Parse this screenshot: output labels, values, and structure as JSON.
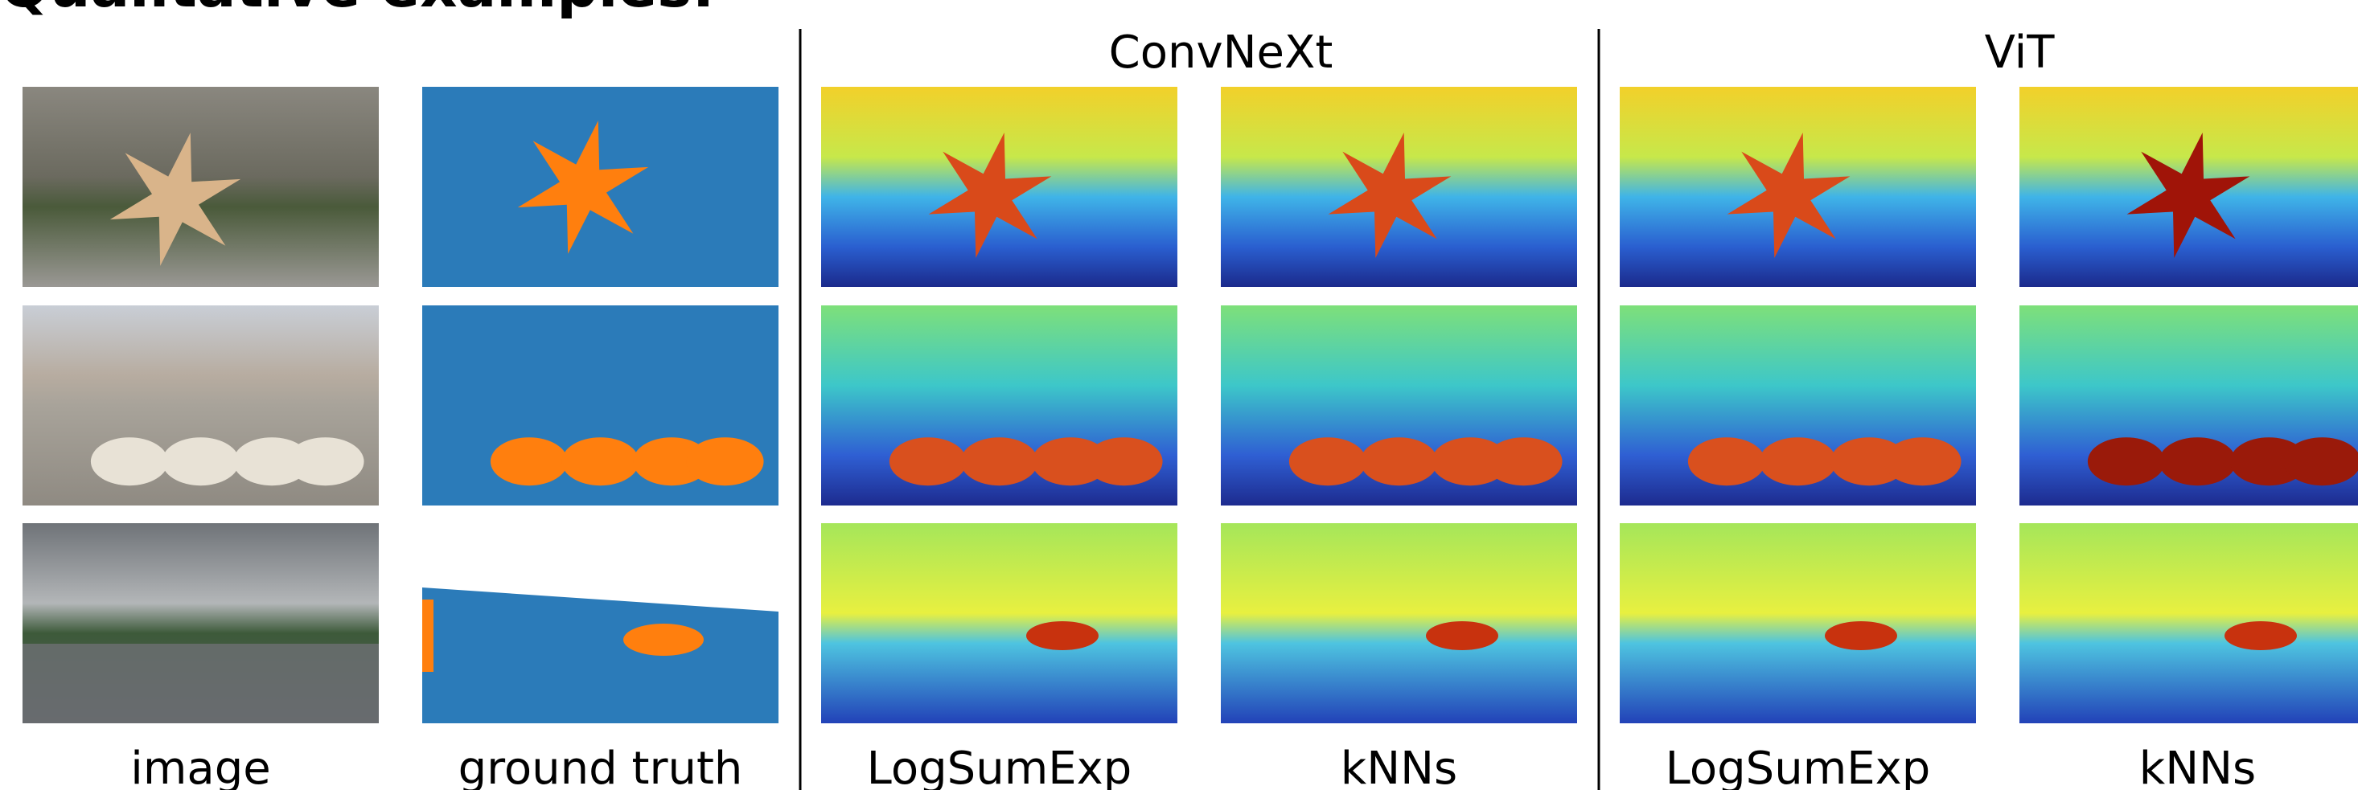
{
  "title": "Qualitative examples:",
  "groups": [
    "ConvNeXt",
    "ViT"
  ],
  "columns": [
    "image",
    "ground truth",
    "LogSumExp",
    "kNNs",
    "LogSumExp",
    "kNNs"
  ]
}
